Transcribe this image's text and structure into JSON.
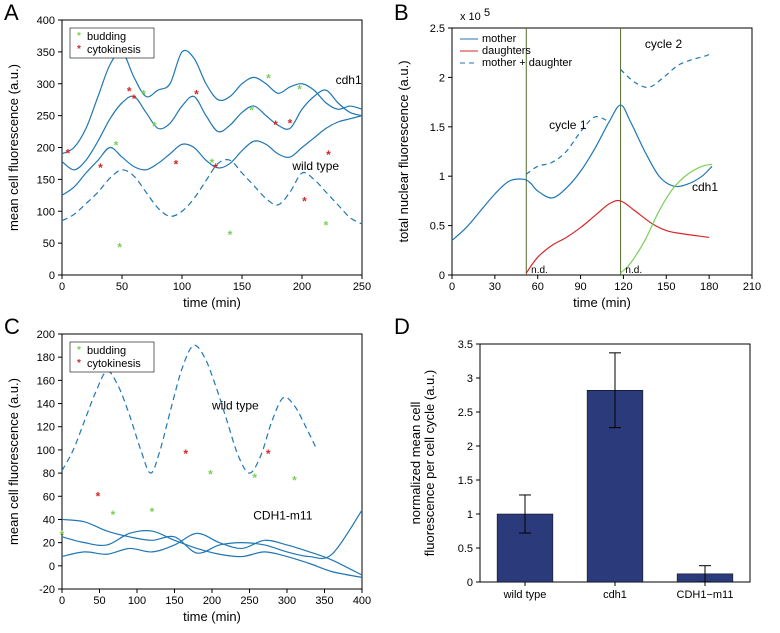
{
  "panelA": {
    "label": "A",
    "xlabel": "time (min)",
    "ylabel": "mean cell fluorescence (a.u.)",
    "xlim": [
      0,
      250
    ],
    "ylim": [
      0,
      400
    ],
    "xticks": [
      0,
      50,
      100,
      150,
      200,
      250
    ],
    "yticks": [
      0,
      50,
      100,
      150,
      200,
      250,
      300,
      350,
      400
    ],
    "legend_items": [
      {
        "label": "budding",
        "color": "#7cce5a",
        "marker": "*"
      },
      {
        "label": "cytokinesis",
        "color": "#d62728",
        "marker": "*"
      }
    ],
    "line_color": "#1f77b4",
    "dash_color": "#1f77b4",
    "annot_cdh1": "cdh1",
    "annot_wt": "wild type",
    "series": [
      {
        "type": "solid",
        "pts": [
          [
            0,
            190
          ],
          [
            10,
            200
          ],
          [
            20,
            230
          ],
          [
            30,
            280
          ],
          [
            40,
            330
          ],
          [
            50,
            350
          ],
          [
            60,
            310
          ],
          [
            70,
            280
          ],
          [
            80,
            290
          ],
          [
            90,
            300
          ],
          [
            100,
            350
          ],
          [
            110,
            340
          ],
          [
            120,
            300
          ],
          [
            130,
            275
          ],
          [
            140,
            280
          ],
          [
            150,
            300
          ],
          [
            160,
            310
          ],
          [
            170,
            300
          ],
          [
            180,
            285
          ],
          [
            190,
            295
          ],
          [
            200,
            300
          ],
          [
            210,
            290
          ],
          [
            220,
            270
          ],
          [
            230,
            260
          ],
          [
            240,
            265
          ],
          [
            250,
            260
          ]
        ]
      },
      {
        "type": "solid",
        "pts": [
          [
            0,
            178
          ],
          [
            10,
            165
          ],
          [
            20,
            180
          ],
          [
            30,
            210
          ],
          [
            40,
            245
          ],
          [
            50,
            270
          ],
          [
            60,
            280
          ],
          [
            70,
            255
          ],
          [
            80,
            230
          ],
          [
            90,
            238
          ],
          [
            100,
            265
          ],
          [
            110,
            280
          ],
          [
            120,
            250
          ],
          [
            130,
            225
          ],
          [
            140,
            235
          ],
          [
            150,
            255
          ],
          [
            160,
            265
          ],
          [
            170,
            250
          ],
          [
            180,
            235
          ],
          [
            190,
            230
          ],
          [
            200,
            260
          ],
          [
            210,
            280
          ],
          [
            220,
            290
          ],
          [
            230,
            270
          ],
          [
            240,
            255
          ],
          [
            250,
            250
          ]
        ]
      },
      {
        "type": "solid",
        "pts": [
          [
            0,
            125
          ],
          [
            10,
            138
          ],
          [
            20,
            160
          ],
          [
            30,
            180
          ],
          [
            40,
            200
          ],
          [
            50,
            185
          ],
          [
            60,
            170
          ],
          [
            70,
            165
          ],
          [
            80,
            175
          ],
          [
            90,
            190
          ],
          [
            100,
            205
          ],
          [
            110,
            200
          ],
          [
            120,
            180
          ],
          [
            130,
            168
          ],
          [
            140,
            175
          ],
          [
            150,
            195
          ],
          [
            160,
            210
          ],
          [
            170,
            205
          ],
          [
            180,
            190
          ],
          [
            190,
            185
          ],
          [
            200,
            200
          ],
          [
            210,
            215
          ],
          [
            220,
            230
          ],
          [
            230,
            240
          ],
          [
            240,
            245
          ],
          [
            250,
            250
          ]
        ]
      },
      {
        "type": "dash",
        "pts": [
          [
            0,
            85
          ],
          [
            10,
            95
          ],
          [
            20,
            112
          ],
          [
            30,
            130
          ],
          [
            40,
            152
          ],
          [
            50,
            165
          ],
          [
            60,
            155
          ],
          [
            70,
            130
          ],
          [
            80,
            105
          ],
          [
            90,
            92
          ],
          [
            100,
            100
          ],
          [
            110,
            120
          ],
          [
            120,
            148
          ],
          [
            130,
            175
          ],
          [
            140,
            180
          ],
          [
            150,
            160
          ],
          [
            160,
            140
          ],
          [
            170,
            120
          ],
          [
            180,
            110
          ],
          [
            190,
            130
          ],
          [
            200,
            160
          ],
          [
            210,
            150
          ],
          [
            220,
            130
          ],
          [
            230,
            110
          ],
          [
            240,
            90
          ],
          [
            250,
            80
          ]
        ]
      }
    ],
    "budding_marks": [
      [
        68,
        280
      ],
      [
        77,
        230
      ],
      [
        45,
        200
      ],
      [
        48,
        40
      ],
      [
        140,
        60
      ],
      [
        125,
        173
      ],
      [
        158,
        255
      ],
      [
        220,
        75
      ],
      [
        198,
        288
      ],
      [
        172,
        305
      ]
    ],
    "cytokinesis_marks": [
      [
        5,
        188
      ],
      [
        56,
        285
      ],
      [
        60,
        273
      ],
      [
        32,
        165
      ],
      [
        95,
        170
      ],
      [
        112,
        280
      ],
      [
        128,
        165
      ],
      [
        178,
        232
      ],
      [
        202,
        112
      ],
      [
        190,
        235
      ],
      [
        222,
        185
      ]
    ]
  },
  "panelB": {
    "label": "B",
    "xlabel": "time (min)",
    "ylabel": "total nuclear fluorescence (a.u.)",
    "exponent": "x 10",
    "exponent_sup": "5",
    "xlim": [
      0,
      210
    ],
    "ylim": [
      0,
      2.5
    ],
    "xticks": [
      0,
      30,
      60,
      90,
      120,
      150,
      180,
      210
    ],
    "yticks": [
      0,
      0.5,
      1,
      1.5,
      2,
      2.5
    ],
    "legend_items": [
      {
        "label": "mother",
        "color": "#1f77b4",
        "dash": "none"
      },
      {
        "label": "daughters",
        "color": "#d62728",
        "dash": "none"
      },
      {
        "label": "mother + daughter",
        "color": "#1f77b4",
        "dash": "5,4"
      }
    ],
    "vlines": [
      52,
      118
    ],
    "vline_color": "#556b2f",
    "annot_cycle1": "cycle 1",
    "annot_cycle2": "cycle 2",
    "annot_cdh1": "cdh1",
    "annot_nd": "n.d.",
    "mother": [
      [
        0,
        0.35
      ],
      [
        10,
        0.48
      ],
      [
        20,
        0.65
      ],
      [
        30,
        0.82
      ],
      [
        40,
        0.95
      ],
      [
        50,
        0.97
      ],
      [
        55,
        0.93
      ],
      [
        60,
        0.85
      ],
      [
        70,
        0.78
      ],
      [
        80,
        0.88
      ],
      [
        90,
        1.05
      ],
      [
        100,
        1.28
      ],
      [
        110,
        1.55
      ],
      [
        118,
        1.72
      ],
      [
        125,
        1.55
      ],
      [
        135,
        1.25
      ],
      [
        145,
        1.0
      ],
      [
        155,
        0.9
      ],
      [
        165,
        0.92
      ],
      [
        175,
        1.0
      ],
      [
        182,
        1.1
      ]
    ],
    "daughter1": [
      [
        52,
        0.02
      ],
      [
        60,
        0.18
      ],
      [
        70,
        0.3
      ],
      [
        80,
        0.38
      ],
      [
        90,
        0.48
      ],
      [
        100,
        0.6
      ],
      [
        110,
        0.72
      ],
      [
        118,
        0.75
      ],
      [
        128,
        0.65
      ],
      [
        140,
        0.52
      ],
      [
        150,
        0.45
      ],
      [
        160,
        0.42
      ],
      [
        170,
        0.4
      ],
      [
        180,
        0.38
      ]
    ],
    "daughter2": [
      [
        118,
        0.02
      ],
      [
        125,
        0.12
      ],
      [
        135,
        0.35
      ],
      [
        145,
        0.65
      ],
      [
        155,
        0.88
      ],
      [
        165,
        1.02
      ],
      [
        175,
        1.1
      ],
      [
        182,
        1.12
      ]
    ],
    "daughter2_color": "#7cce5a",
    "motherplus1": [
      [
        52,
        1.02
      ],
      [
        60,
        1.1
      ],
      [
        70,
        1.14
      ],
      [
        80,
        1.25
      ],
      [
        90,
        1.45
      ],
      [
        100,
        1.6
      ],
      [
        110,
        1.55
      ]
    ],
    "motherplus2": [
      [
        118,
        2.08
      ],
      [
        128,
        1.95
      ],
      [
        138,
        1.9
      ],
      [
        148,
        2.0
      ],
      [
        158,
        2.12
      ],
      [
        168,
        2.18
      ],
      [
        178,
        2.22
      ],
      [
        182,
        2.25
      ]
    ]
  },
  "panelC": {
    "label": "C",
    "xlabel": "time (min)",
    "ylabel": "mean cell fluorescence (a.u.)",
    "xlim": [
      0,
      400
    ],
    "ylim": [
      -20,
      200
    ],
    "xticks": [
      0,
      50,
      100,
      150,
      200,
      250,
      300,
      350,
      400
    ],
    "yticks": [
      -20,
      0,
      20,
      40,
      60,
      80,
      100,
      120,
      140,
      160,
      180,
      200
    ],
    "legend_items": [
      {
        "label": "budding",
        "color": "#7cce5a",
        "marker": "*"
      },
      {
        "label": "cytokinesis",
        "color": "#d62728",
        "marker": "*"
      }
    ],
    "line_color": "#1f77b4",
    "annot_wt": "wild type",
    "annot_m11": "CDH1-m11",
    "wt": [
      [
        0,
        82
      ],
      [
        15,
        100
      ],
      [
        30,
        125
      ],
      [
        45,
        150
      ],
      [
        60,
        168
      ],
      [
        75,
        155
      ],
      [
        90,
        130
      ],
      [
        105,
        100
      ],
      [
        118,
        80
      ],
      [
        130,
        98
      ],
      [
        145,
        135
      ],
      [
        160,
        170
      ],
      [
        175,
        190
      ],
      [
        190,
        180
      ],
      [
        205,
        155
      ],
      [
        220,
        125
      ],
      [
        235,
        95
      ],
      [
        250,
        80
      ],
      [
        265,
        95
      ],
      [
        280,
        125
      ],
      [
        295,
        145
      ],
      [
        310,
        138
      ],
      [
        325,
        120
      ],
      [
        340,
        100
      ]
    ],
    "cdh1_lines": [
      [
        [
          0,
          40
        ],
        [
          30,
          38
        ],
        [
          60,
          30
        ],
        [
          90,
          25
        ],
        [
          120,
          22
        ],
        [
          150,
          25
        ],
        [
          180,
          11
        ],
        [
          210,
          18
        ],
        [
          240,
          20
        ],
        [
          270,
          18
        ],
        [
          300,
          12
        ],
        [
          330,
          8
        ],
        [
          360,
          10
        ],
        [
          400,
          48
        ]
      ],
      [
        [
          0,
          25
        ],
        [
          30,
          20
        ],
        [
          60,
          18
        ],
        [
          90,
          28
        ],
        [
          120,
          30
        ],
        [
          150,
          22
        ],
        [
          180,
          15
        ],
        [
          210,
          10
        ],
        [
          240,
          8
        ],
        [
          270,
          12
        ],
        [
          300,
          8
        ],
        [
          330,
          2
        ],
        [
          360,
          -5
        ],
        [
          400,
          -10
        ]
      ],
      [
        [
          0,
          8
        ],
        [
          30,
          12
        ],
        [
          60,
          10
        ],
        [
          90,
          15
        ],
        [
          120,
          12
        ],
        [
          150,
          18
        ],
        [
          180,
          28
        ],
        [
          210,
          20
        ],
        [
          240,
          15
        ],
        [
          270,
          22
        ],
        [
          300,
          18
        ],
        [
          330,
          12
        ],
        [
          360,
          5
        ],
        [
          400,
          -8
        ]
      ]
    ],
    "budding_marks": [
      [
        0,
        25
      ],
      [
        68,
        42
      ],
      [
        120,
        45
      ],
      [
        198,
        77
      ],
      [
        257,
        74
      ],
      [
        310,
        72
      ]
    ],
    "cytokinesis_marks": [
      [
        48,
        58
      ],
      [
        165,
        95
      ],
      [
        275,
        95
      ]
    ]
  },
  "panelD": {
    "label": "D",
    "ylabel": "normalized mean cell\nfluorescence per cell cycle (a.u.)",
    "categories": [
      "wild type",
      "cdh1",
      "CDH1−m11"
    ],
    "values": [
      1.0,
      2.82,
      0.12
    ],
    "errors": [
      0.28,
      0.55,
      0.12
    ],
    "ylim": [
      0,
      3.5
    ],
    "yticks": [
      0,
      0.5,
      1.0,
      1.5,
      2.0,
      2.5,
      3.0,
      3.5
    ],
    "bar_color": "#2b3a7a",
    "err_color": "#000000"
  },
  "background": "#ffffff"
}
